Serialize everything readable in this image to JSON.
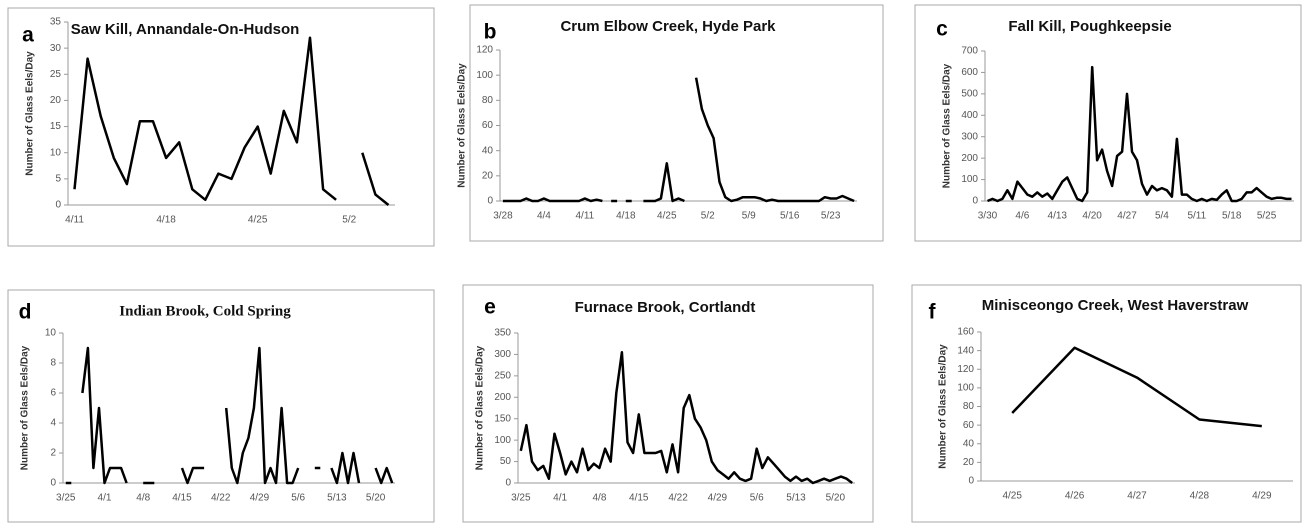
{
  "chart_data": [
    {
      "type": "line",
      "label": "a",
      "title": "Saw Kill, Annandale-On-Hudson",
      "y_label": "Number of Glass Eels/Day",
      "color": "#000000",
      "categories": [
        "4/11",
        null,
        null,
        null,
        null,
        null,
        null,
        "4/18",
        null,
        null,
        null,
        null,
        null,
        null,
        "4/25",
        null,
        null,
        null,
        null,
        null,
        null,
        "5/2",
        null,
        null,
        null
      ],
      "values": [
        3,
        28,
        17,
        9,
        4,
        16,
        16,
        9,
        12,
        3,
        1,
        6,
        5,
        11,
        15,
        6,
        18,
        12,
        32,
        3,
        1,
        null,
        10,
        2,
        0
      ],
      "ylim": [
        0,
        35
      ],
      "yticks": [
        0,
        5,
        10,
        15,
        20,
        25,
        30,
        35
      ]
    },
    {
      "type": "line",
      "label": "b",
      "title": "Crum Elbow Creek, Hyde Park",
      "y_label": "Number of Glass Eels/Day",
      "color": "#000000",
      "categories": [
        "3/28",
        null,
        null,
        null,
        null,
        null,
        null,
        "4/4",
        null,
        null,
        null,
        null,
        null,
        null,
        "4/11",
        null,
        null,
        null,
        null,
        null,
        null,
        "4/18",
        null,
        null,
        null,
        null,
        null,
        null,
        "4/25",
        null,
        null,
        null,
        null,
        null,
        null,
        "5/2",
        null,
        null,
        null,
        null,
        null,
        null,
        "5/9",
        null,
        null,
        null,
        null,
        null,
        null,
        "5/16",
        null,
        null,
        null,
        null,
        null,
        null,
        "5/23",
        null,
        null,
        null,
        null
      ],
      "values": [
        0,
        0,
        0,
        0,
        2,
        0,
        0,
        2,
        0,
        0,
        0,
        0,
        0,
        0,
        2,
        0,
        1,
        0,
        null,
        0,
        null,
        0,
        0,
        null,
        0,
        0,
        0,
        2,
        30,
        0,
        2,
        0,
        null,
        98,
        73,
        60,
        50,
        15,
        3,
        0,
        1,
        3,
        3,
        3,
        2,
        0,
        1,
        0,
        0,
        0,
        0,
        0,
        0,
        0,
        0,
        3,
        2,
        2,
        4,
        2,
        0
      ],
      "ylim": [
        0,
        120
      ],
      "yticks": [
        0,
        20,
        40,
        60,
        80,
        100,
        120
      ]
    },
    {
      "type": "line",
      "label": "c",
      "title": "Fall Kill, Poughkeepsie",
      "y_label": "Number of Glass Eels/Day",
      "color": "#000000",
      "categories": [
        "3/30",
        null,
        null,
        null,
        null,
        null,
        null,
        "4/6",
        null,
        null,
        null,
        null,
        null,
        null,
        "4/13",
        null,
        null,
        null,
        null,
        null,
        null,
        "4/20",
        null,
        null,
        null,
        null,
        null,
        null,
        "4/27",
        null,
        null,
        null,
        null,
        null,
        null,
        "5/4",
        null,
        null,
        null,
        null,
        null,
        null,
        "5/11",
        null,
        null,
        null,
        null,
        null,
        null,
        "5/18",
        null,
        null,
        null,
        null,
        null,
        null,
        "5/25",
        null,
        null,
        null,
        null,
        null
      ],
      "values": [
        0,
        10,
        0,
        10,
        50,
        10,
        90,
        60,
        30,
        20,
        40,
        20,
        35,
        10,
        50,
        90,
        110,
        60,
        10,
        0,
        40,
        625,
        190,
        240,
        140,
        70,
        210,
        230,
        500,
        230,
        190,
        80,
        30,
        70,
        50,
        60,
        50,
        20,
        290,
        30,
        30,
        10,
        0,
        10,
        0,
        10,
        5,
        30,
        50,
        0,
        0,
        10,
        40,
        40,
        60,
        40,
        20,
        10,
        15,
        15,
        10,
        10
      ],
      "ylim": [
        0,
        700
      ],
      "yticks": [
        0,
        100,
        200,
        300,
        400,
        500,
        600,
        700
      ]
    },
    {
      "type": "line",
      "label": "d",
      "title": "Indian Brook, Cold Spring",
      "y_label": "Number of Glass Eels/Day",
      "color": "#000000",
      "categories": [
        "3/25",
        null,
        null,
        null,
        null,
        null,
        null,
        "4/1",
        null,
        null,
        null,
        null,
        null,
        null,
        "4/8",
        null,
        null,
        null,
        null,
        null,
        null,
        "4/15",
        null,
        null,
        null,
        null,
        null,
        null,
        "4/22",
        null,
        null,
        null,
        null,
        null,
        null,
        "4/29",
        null,
        null,
        null,
        null,
        null,
        null,
        "5/6",
        null,
        null,
        null,
        null,
        null,
        null,
        "5/13",
        null,
        null,
        null,
        null,
        null,
        null,
        "5/20",
        null,
        null,
        null
      ],
      "values": [
        0,
        0,
        null,
        6,
        9,
        1,
        5,
        0,
        1,
        1,
        1,
        0,
        null,
        null,
        0,
        0,
        0,
        null,
        null,
        null,
        null,
        1,
        0,
        1,
        1,
        1,
        null,
        null,
        null,
        5,
        1,
        0,
        2,
        3,
        5,
        9,
        0,
        1,
        0,
        5,
        0,
        0,
        1,
        null,
        null,
        1,
        1,
        null,
        1,
        0,
        2,
        0,
        2,
        0,
        null,
        null,
        1,
        0,
        1,
        0
      ],
      "ylim": [
        0,
        10
      ],
      "yticks": [
        0,
        2,
        4,
        6,
        8,
        10
      ]
    },
    {
      "type": "line",
      "label": "e",
      "title": "Furnace Brook, Cortlandt",
      "y_label": "Number of Glass Eels/Day",
      "color": "#000000",
      "categories": [
        "3/25",
        null,
        null,
        null,
        null,
        null,
        null,
        "4/1",
        null,
        null,
        null,
        null,
        null,
        null,
        "4/8",
        null,
        null,
        null,
        null,
        null,
        null,
        "4/15",
        null,
        null,
        null,
        null,
        null,
        null,
        "4/22",
        null,
        null,
        null,
        null,
        null,
        null,
        "4/29",
        null,
        null,
        null,
        null,
        null,
        null,
        "5/6",
        null,
        null,
        null,
        null,
        null,
        null,
        "5/13",
        null,
        null,
        null,
        null,
        null,
        null,
        "5/20",
        null,
        null,
        null
      ],
      "values": [
        75,
        135,
        50,
        30,
        40,
        10,
        115,
        70,
        20,
        50,
        25,
        80,
        30,
        45,
        35,
        80,
        50,
        210,
        305,
        95,
        70,
        160,
        70,
        70,
        70,
        75,
        25,
        90,
        25,
        175,
        205,
        150,
        130,
        100,
        50,
        30,
        20,
        10,
        25,
        10,
        5,
        10,
        80,
        35,
        60,
        45,
        30,
        15,
        5,
        15,
        5,
        10,
        0,
        5,
        10,
        5,
        10,
        15,
        10,
        0
      ],
      "ylim": [
        0,
        350
      ],
      "yticks": [
        0,
        50,
        100,
        150,
        200,
        250,
        300,
        350
      ]
    },
    {
      "type": "line",
      "label": "f",
      "title": "Minisceongo Creek, West Haverstraw",
      "y_label": "Number of Glass Eels/Day",
      "color": "#000000",
      "categories": [
        "4/25",
        "4/26",
        "4/27",
        "4/28",
        "4/29"
      ],
      "values": [
        73,
        143,
        111,
        66,
        59
      ],
      "ylim": [
        0,
        160
      ],
      "yticks": [
        0,
        20,
        40,
        60,
        80,
        100,
        120,
        140,
        160
      ]
    }
  ]
}
